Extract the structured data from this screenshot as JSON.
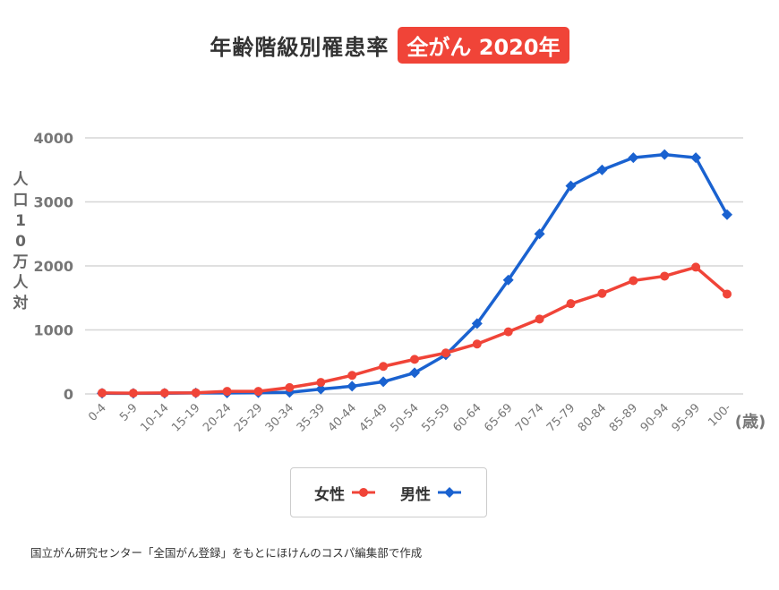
{
  "title": "年齢階級別罹患率",
  "badge": "全がん 2020年",
  "footer": "国立がん研究センター「全国がん登録」をもとにほけんのコスパ編集部で作成",
  "chart_data": {
    "type": "line",
    "title": "年齢階級別罹患率 全がん 2020年",
    "ylabel": "人口10万人対",
    "xlabel": "(歳)",
    "ylim": [
      0,
      4000
    ],
    "yticks": [
      "0",
      "1000",
      "2000",
      "3000",
      "4000"
    ],
    "grid": true,
    "legend_position": "bottom",
    "categories": [
      "0-4",
      "5-9",
      "10-14",
      "15-19",
      "20-24",
      "25-29",
      "30-34",
      "35-39",
      "40-44",
      "45-49",
      "50-54",
      "55-59",
      "60-64",
      "65-69",
      "70-74",
      "75-79",
      "80-84",
      "85-89",
      "90-94",
      "95-99",
      "100-"
    ],
    "series": [
      {
        "name": "女性",
        "color": "#f04438",
        "marker": "circle",
        "values": [
          15,
          12,
          15,
          18,
          40,
          40,
          100,
          180,
          290,
          430,
          540,
          640,
          780,
          970,
          1170,
          1410,
          1570,
          1770,
          1840,
          1980,
          1560
        ]
      },
      {
        "name": "男性",
        "color": "#1a62d0",
        "marker": "diamond",
        "values": [
          10,
          8,
          10,
          15,
          15,
          20,
          25,
          75,
          120,
          190,
          330,
          610,
          1100,
          1780,
          2500,
          3250,
          3500,
          3690,
          3740,
          3690,
          2800
        ]
      }
    ]
  }
}
